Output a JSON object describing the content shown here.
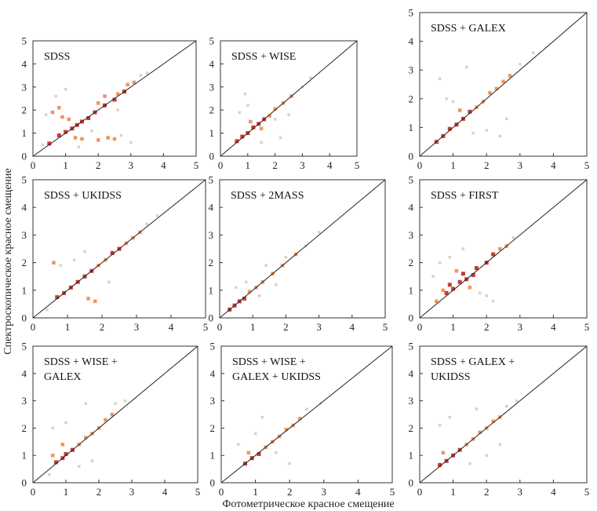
{
  "figure": {
    "xlabel": "Фотометрическое красное смещение",
    "ylabel": "Спектроскопическое красное смещение"
  },
  "chart_data": [
    {
      "type": "scatter",
      "title": [
        "SDSS"
      ],
      "xlim": [
        0,
        5
      ],
      "ylim": [
        0,
        5
      ],
      "ticks": [
        "0",
        "1",
        "2",
        "3",
        "4",
        "5"
      ],
      "reference_line": "y = x",
      "grid": false,
      "series": [
        {
          "intensity": "high",
          "points": [
            [
              0.5,
              0.55
            ],
            [
              0.8,
              0.9
            ],
            [
              1.0,
              1.05
            ],
            [
              1.2,
              1.2
            ],
            [
              1.35,
              1.35
            ],
            [
              1.5,
              1.5
            ],
            [
              1.7,
              1.65
            ],
            [
              1.9,
              1.9
            ],
            [
              2.2,
              2.2
            ],
            [
              2.5,
              2.45
            ],
            [
              2.8,
              2.8
            ]
          ]
        },
        {
          "intensity": "medium",
          "points": [
            [
              0.6,
              1.9
            ],
            [
              0.8,
              2.1
            ],
            [
              0.9,
              1.7
            ],
            [
              1.1,
              1.6
            ],
            [
              1.3,
              0.8
            ],
            [
              1.5,
              0.75
            ],
            [
              2.0,
              0.7
            ],
            [
              2.3,
              0.8
            ],
            [
              2.5,
              0.75
            ],
            [
              2.0,
              2.3
            ],
            [
              2.2,
              2.6
            ],
            [
              2.6,
              2.7
            ],
            [
              2.9,
              3.1
            ],
            [
              3.1,
              3.2
            ]
          ]
        },
        {
          "intensity": "low",
          "points": [
            [
              0.4,
              1.8
            ],
            [
              0.7,
              2.6
            ],
            [
              0.3,
              0.5
            ],
            [
              1.4,
              0.4
            ],
            [
              2.7,
              0.9
            ],
            [
              3.0,
              0.6
            ],
            [
              3.3,
              3.5
            ],
            [
              3.5,
              3.6
            ],
            [
              1.0,
              2.9
            ],
            [
              2.6,
              2.0
            ],
            [
              1.8,
              1.1
            ]
          ]
        }
      ]
    },
    {
      "type": "scatter",
      "title": [
        "SDSS + WISE"
      ],
      "xlim": [
        0,
        5
      ],
      "ylim": [
        0,
        5
      ],
      "ticks": [
        "0",
        "1",
        "2",
        "3",
        "4",
        "5"
      ],
      "reference_line": "y = x",
      "grid": false,
      "series": [
        {
          "intensity": "high",
          "points": [
            [
              0.6,
              0.65
            ],
            [
              0.8,
              0.85
            ],
            [
              1.0,
              1.0
            ],
            [
              1.2,
              1.25
            ],
            [
              1.4,
              1.4
            ],
            [
              1.6,
              1.6
            ]
          ]
        },
        {
          "intensity": "medium",
          "points": [
            [
              1.8,
              1.75
            ],
            [
              2.0,
              2.05
            ],
            [
              2.3,
              2.3
            ],
            [
              2.6,
              2.6
            ],
            [
              1.1,
              1.5
            ],
            [
              1.5,
              1.2
            ]
          ]
        },
        {
          "intensity": "low",
          "points": [
            [
              0.7,
              1.9
            ],
            [
              1.0,
              2.2
            ],
            [
              1.5,
              0.6
            ],
            [
              2.2,
              0.8
            ],
            [
              2.0,
              1.6
            ],
            [
              2.5,
              1.8
            ],
            [
              3.0,
              3.0
            ],
            [
              3.3,
              3.4
            ],
            [
              0.9,
              2.7
            ]
          ]
        }
      ]
    },
    {
      "type": "scatter",
      "title": [
        "SDSS + GALEX"
      ],
      "xlim": [
        0,
        5
      ],
      "ylim": [
        0,
        5
      ],
      "ticks": [
        "0",
        "1",
        "2",
        "3",
        "4",
        "5"
      ],
      "reference_line": "y = x",
      "grid": false,
      "series": [
        {
          "intensity": "high",
          "points": [
            [
              0.5,
              0.5
            ],
            [
              0.7,
              0.7
            ],
            [
              0.9,
              0.95
            ],
            [
              1.1,
              1.1
            ],
            [
              1.3,
              1.3
            ],
            [
              1.5,
              1.55
            ]
          ]
        },
        {
          "intensity": "medium",
          "points": [
            [
              1.7,
              1.7
            ],
            [
              1.9,
              1.9
            ],
            [
              2.1,
              2.2
            ],
            [
              2.3,
              2.35
            ],
            [
              2.5,
              2.6
            ],
            [
              2.7,
              2.8
            ],
            [
              1.2,
              1.6
            ]
          ]
        },
        {
          "intensity": "low",
          "points": [
            [
              0.8,
              2.0
            ],
            [
              0.6,
              2.7
            ],
            [
              1.0,
              1.9
            ],
            [
              1.6,
              0.8
            ],
            [
              2.0,
              0.9
            ],
            [
              2.4,
              0.7
            ],
            [
              2.6,
              1.3
            ],
            [
              3.0,
              3.2
            ],
            [
              3.4,
              3.6
            ],
            [
              1.4,
              3.1
            ]
          ]
        }
      ]
    },
    {
      "type": "scatter",
      "title": [
        "SDSS + UKIDSS"
      ],
      "xlim": [
        0,
        5
      ],
      "ylim": [
        0,
        5
      ],
      "ticks": [
        "0",
        "1",
        "2",
        "3",
        "4",
        "5"
      ],
      "reference_line": "y = x",
      "grid": false,
      "series": [
        {
          "intensity": "high",
          "points": [
            [
              0.7,
              0.75
            ],
            [
              0.9,
              0.9
            ],
            [
              1.1,
              1.1
            ],
            [
              1.3,
              1.3
            ],
            [
              1.5,
              1.5
            ],
            [
              1.7,
              1.7
            ],
            [
              2.3,
              2.35
            ],
            [
              2.5,
              2.5
            ]
          ]
        },
        {
          "intensity": "medium",
          "points": [
            [
              1.9,
              1.9
            ],
            [
              2.1,
              2.1
            ],
            [
              2.7,
              2.7
            ],
            [
              2.9,
              2.9
            ],
            [
              3.1,
              3.1
            ],
            [
              1.6,
              0.7
            ],
            [
              1.8,
              0.6
            ],
            [
              0.6,
              2.0
            ]
          ]
        },
        {
          "intensity": "low",
          "points": [
            [
              0.8,
              1.9
            ],
            [
              1.2,
              2.1
            ],
            [
              1.5,
              2.4
            ],
            [
              2.2,
              1.3
            ],
            [
              3.3,
              3.4
            ],
            [
              3.6,
              3.7
            ],
            [
              0.4,
              0.3
            ]
          ]
        }
      ]
    },
    {
      "type": "scatter",
      "title": [
        "SDSS + 2MASS"
      ],
      "xlim": [
        0,
        5
      ],
      "ylim": [
        0,
        5
      ],
      "ticks": [
        "0",
        "1",
        "2",
        "3",
        "4",
        "5"
      ],
      "reference_line": "y = x",
      "grid": false,
      "series": [
        {
          "intensity": "high",
          "points": [
            [
              0.3,
              0.3
            ],
            [
              0.45,
              0.45
            ],
            [
              0.6,
              0.6
            ],
            [
              0.75,
              0.7
            ]
          ]
        },
        {
          "intensity": "medium",
          "points": [
            [
              0.9,
              0.95
            ],
            [
              1.1,
              1.1
            ],
            [
              1.3,
              1.3
            ],
            [
              1.6,
              1.6
            ],
            [
              1.9,
              1.9
            ],
            [
              2.3,
              2.3
            ]
          ]
        },
        {
          "intensity": "low",
          "points": [
            [
              0.5,
              1.1
            ],
            [
              0.8,
              1.3
            ],
            [
              1.2,
              0.8
            ],
            [
              1.7,
              1.2
            ],
            [
              2.0,
              2.2
            ],
            [
              2.6,
              2.6
            ],
            [
              3.0,
              3.1
            ],
            [
              1.4,
              1.9
            ]
          ]
        }
      ]
    },
    {
      "type": "scatter",
      "title": [
        "SDSS + FIRST"
      ],
      "xlim": [
        0,
        5
      ],
      "ylim": [
        0,
        5
      ],
      "ticks": [
        "0",
        "1",
        "2",
        "3",
        "4",
        "5"
      ],
      "reference_line": "y = x",
      "grid": false,
      "series": [
        {
          "intensity": "high",
          "points": [
            [
              0.8,
              0.9
            ],
            [
              1.0,
              1.05
            ],
            [
              1.2,
              1.3
            ],
            [
              1.4,
              1.4
            ],
            [
              1.6,
              1.55
            ],
            [
              0.9,
              1.2
            ],
            [
              1.3,
              1.6
            ],
            [
              1.7,
              1.8
            ],
            [
              2.0,
              2.0
            ],
            [
              2.2,
              2.3
            ]
          ]
        },
        {
          "intensity": "medium",
          "points": [
            [
              2.4,
              2.5
            ],
            [
              2.6,
              2.6
            ],
            [
              0.5,
              0.6
            ],
            [
              1.1,
              1.7
            ],
            [
              1.5,
              1.1
            ],
            [
              0.7,
              1.0
            ]
          ]
        },
        {
          "intensity": "low",
          "points": [
            [
              0.6,
              2.0
            ],
            [
              0.9,
              2.2
            ],
            [
              2.0,
              0.8
            ],
            [
              2.2,
              0.6
            ],
            [
              1.8,
              0.9
            ],
            [
              2.8,
              2.9
            ],
            [
              1.3,
              2.5
            ],
            [
              0.4,
              1.5
            ]
          ]
        }
      ]
    },
    {
      "type": "scatter",
      "title": [
        "SDSS + WISE +",
        "GALEX"
      ],
      "xlim": [
        0,
        5
      ],
      "ylim": [
        0,
        5
      ],
      "ticks": [
        "0",
        "1",
        "2",
        "3",
        "4",
        "5"
      ],
      "reference_line": "y = x",
      "grid": false,
      "series": [
        {
          "intensity": "high",
          "points": [
            [
              0.7,
              0.75
            ],
            [
              0.9,
              0.9
            ],
            [
              1.0,
              1.05
            ],
            [
              1.2,
              1.2
            ]
          ]
        },
        {
          "intensity": "medium",
          "points": [
            [
              1.4,
              1.4
            ],
            [
              1.6,
              1.65
            ],
            [
              1.8,
              1.8
            ],
            [
              2.0,
              2.0
            ],
            [
              2.2,
              2.3
            ],
            [
              2.4,
              2.5
            ],
            [
              0.6,
              1.0
            ],
            [
              0.9,
              1.4
            ]
          ]
        },
        {
          "intensity": "low",
          "points": [
            [
              0.6,
              2.0
            ],
            [
              1.0,
              2.2
            ],
            [
              1.4,
              0.6
            ],
            [
              1.8,
              0.8
            ],
            [
              2.5,
              2.9
            ],
            [
              2.8,
              3.0
            ],
            [
              1.6,
              2.9
            ],
            [
              0.5,
              0.3
            ]
          ]
        }
      ]
    },
    {
      "type": "scatter",
      "title": [
        "SDSS + WISE +",
        "GALEX + UKIDSS"
      ],
      "xlim": [
        0,
        5
      ],
      "ylim": [
        0,
        5
      ],
      "ticks": [
        "0",
        "1",
        "2",
        "3",
        "4",
        "5"
      ],
      "reference_line": "y = x",
      "grid": false,
      "series": [
        {
          "intensity": "high",
          "points": [
            [
              0.7,
              0.7
            ],
            [
              0.9,
              0.9
            ],
            [
              1.1,
              1.05
            ]
          ]
        },
        {
          "intensity": "medium",
          "points": [
            [
              1.3,
              1.3
            ],
            [
              1.5,
              1.5
            ],
            [
              1.7,
              1.7
            ],
            [
              1.9,
              1.95
            ],
            [
              2.1,
              2.1
            ],
            [
              2.3,
              2.35
            ],
            [
              0.8,
              1.1
            ]
          ]
        },
        {
          "intensity": "low",
          "points": [
            [
              0.5,
              1.4
            ],
            [
              1.0,
              1.8
            ],
            [
              1.6,
              1.1
            ],
            [
              2.0,
              0.7
            ],
            [
              2.5,
              2.7
            ],
            [
              2.9,
              2.9
            ],
            [
              1.2,
              2.4
            ]
          ]
        }
      ]
    },
    {
      "type": "scatter",
      "title": [
        "SDSS + GALEX +",
        "UKIDSS"
      ],
      "xlim": [
        0,
        5
      ],
      "ylim": [
        0,
        5
      ],
      "ticks": [
        "0",
        "1",
        "2",
        "3",
        "4",
        "5"
      ],
      "reference_line": "y = x",
      "grid": false,
      "series": [
        {
          "intensity": "high",
          "points": [
            [
              0.6,
              0.65
            ],
            [
              0.8,
              0.8
            ],
            [
              1.0,
              1.0
            ],
            [
              1.2,
              1.2
            ]
          ]
        },
        {
          "intensity": "medium",
          "points": [
            [
              1.4,
              1.4
            ],
            [
              1.6,
              1.6
            ],
            [
              1.8,
              1.85
            ],
            [
              2.0,
              2.0
            ],
            [
              2.2,
              2.25
            ],
            [
              2.4,
              2.4
            ],
            [
              0.7,
              1.1
            ]
          ]
        },
        {
          "intensity": "low",
          "points": [
            [
              0.6,
              2.1
            ],
            [
              0.9,
              2.4
            ],
            [
              1.5,
              0.7
            ],
            [
              2.0,
              1.0
            ],
            [
              2.6,
              2.8
            ],
            [
              2.9,
              3.0
            ],
            [
              1.7,
              2.7
            ],
            [
              2.4,
              1.4
            ]
          ]
        }
      ]
    }
  ]
}
